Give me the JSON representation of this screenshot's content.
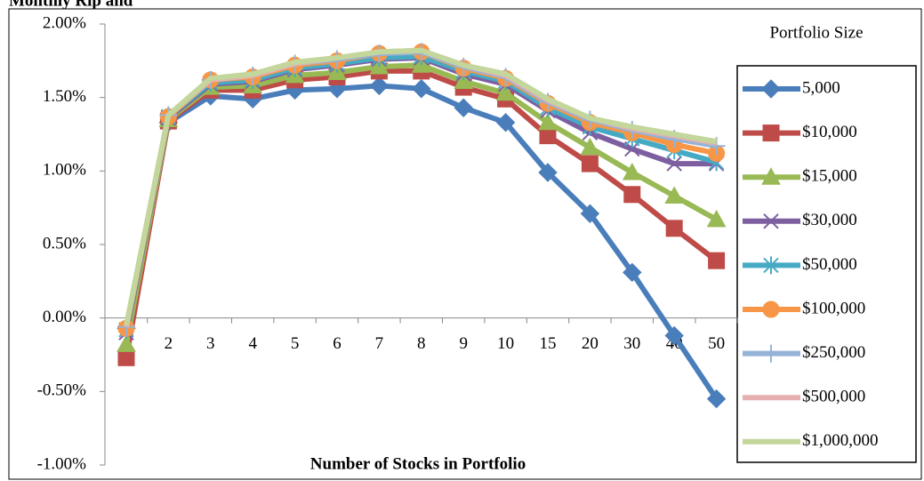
{
  "chart_data": {
    "type": "line",
    "title": "Monthly Rip and",
    "x_label": "Number of Stocks in Portfolio",
    "legend_title": "Portfolio Size",
    "legend": "right",
    "categories": [
      "1",
      "2",
      "3",
      "4",
      "5",
      "6",
      "7",
      "8",
      "9",
      "10",
      "15",
      "20",
      "30",
      "40",
      "50"
    ],
    "ylim": [
      -1,
      2
    ],
    "yticks": [
      {
        "value": -1,
        "label": "-1.00%"
      },
      {
        "value": -0.5,
        "label": "-0.50%"
      },
      {
        "value": 0,
        "label": "0.00%"
      },
      {
        "value": 0.5,
        "label": "0.50%"
      },
      {
        "value": 1,
        "label": "1.00%"
      },
      {
        "value": 1.5,
        "label": "1.50%"
      },
      {
        "value": 2,
        "label": "2.00%"
      }
    ],
    "series": [
      {
        "name": "5,000",
        "color": "#4a7ebb",
        "marker": "diamond",
        "values": [
          -0.07,
          1.33,
          1.51,
          1.49,
          1.55,
          1.56,
          1.58,
          1.56,
          1.43,
          1.33,
          0.99,
          0.71,
          0.31,
          -0.12,
          -0.55
        ]
      },
      {
        "name": "$10,000",
        "color": "#be4b48",
        "marker": "square",
        "values": [
          -0.27,
          1.34,
          1.55,
          1.55,
          1.62,
          1.64,
          1.68,
          1.68,
          1.57,
          1.49,
          1.24,
          1.05,
          0.84,
          0.61,
          0.39
        ]
      },
      {
        "name": "$15,000",
        "color": "#98b954",
        "marker": "triangle",
        "values": [
          -0.18,
          1.35,
          1.57,
          1.58,
          1.65,
          1.67,
          1.71,
          1.72,
          1.61,
          1.53,
          1.33,
          1.16,
          0.99,
          0.83,
          0.67
        ]
      },
      {
        "name": "$30,000",
        "color": "#7d5fa0",
        "marker": "x",
        "values": [
          -0.1,
          1.36,
          1.59,
          1.61,
          1.69,
          1.72,
          1.76,
          1.77,
          1.66,
          1.59,
          1.41,
          1.26,
          1.15,
          1.05,
          1.05
        ]
      },
      {
        "name": "$50,000",
        "color": "#46aac5",
        "marker": "star",
        "values": [
          -0.08,
          1.37,
          1.6,
          1.62,
          1.7,
          1.73,
          1.77,
          1.78,
          1.68,
          1.61,
          1.43,
          1.3,
          1.22,
          1.14,
          1.06
        ]
      },
      {
        "name": "$100,000",
        "color": "#f79646",
        "marker": "circle",
        "values": [
          -0.07,
          1.37,
          1.62,
          1.64,
          1.72,
          1.75,
          1.8,
          1.81,
          1.7,
          1.63,
          1.46,
          1.33,
          1.26,
          1.18,
          1.12
        ]
      },
      {
        "name": "$250,000",
        "color": "#95b3d7",
        "marker": "plus",
        "values": [
          -0.06,
          1.38,
          1.62,
          1.65,
          1.73,
          1.76,
          1.8,
          1.81,
          1.71,
          1.64,
          1.47,
          1.35,
          1.28,
          1.22,
          1.17
        ]
      },
      {
        "name": "$500,000",
        "color": "#e6b0b0",
        "marker": "none",
        "values": [
          -0.06,
          1.38,
          1.62,
          1.65,
          1.73,
          1.77,
          1.81,
          1.82,
          1.72,
          1.65,
          1.48,
          1.36,
          1.29,
          1.24,
          1.19
        ]
      },
      {
        "name": "$1,000,000",
        "color": "#c3d69b",
        "marker": "none",
        "values": [
          -0.05,
          1.38,
          1.63,
          1.66,
          1.74,
          1.77,
          1.81,
          1.82,
          1.72,
          1.66,
          1.49,
          1.36,
          1.3,
          1.25,
          1.2
        ]
      }
    ]
  }
}
